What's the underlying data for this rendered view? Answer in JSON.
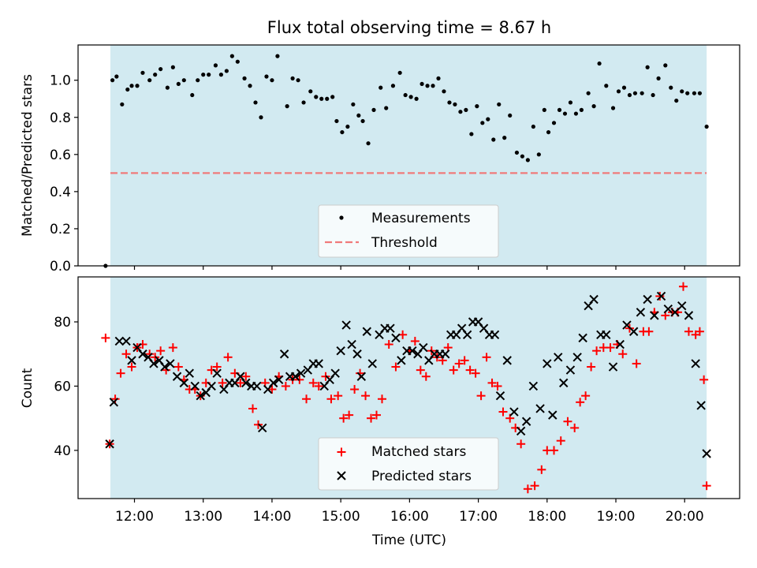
{
  "figure_title": "Flux total observing time = 8.67 h",
  "colors": {
    "shade": "#add8e6",
    "measurement": "#000000",
    "threshold": "#f07a7a",
    "matched": "#ff0000",
    "predicted": "#000000"
  },
  "chart_data": [
    {
      "type": "scatter",
      "name": "ratio",
      "title": "Flux total observing time = 8.67 h",
      "xlabel": "",
      "ylabel": "Matched/Predicted stars",
      "xlim_hours": [
        11.18,
        20.8
      ],
      "ylim": [
        0,
        1.19
      ],
      "yticks": [
        0.0,
        0.2,
        0.4,
        0.6,
        0.8,
        1.0
      ],
      "ytick_labels": [
        "0.0",
        "0.2",
        "0.4",
        "0.6",
        "0.8",
        "1.0"
      ],
      "shaded_span_hours": [
        11.65,
        20.32
      ],
      "threshold": {
        "value": 0.5,
        "x_hours": [
          11.65,
          20.32
        ]
      },
      "legend": {
        "placement": "lower center",
        "entries": [
          "Measurements",
          "Threshold"
        ]
      },
      "series": [
        {
          "name": "Measurements",
          "x_hours": [
            11.58,
            11.68,
            11.74,
            11.82,
            11.9,
            11.96,
            12.04,
            12.12,
            12.22,
            12.3,
            12.38,
            12.48,
            12.56,
            12.64,
            12.72,
            12.84,
            12.92,
            13.0,
            13.08,
            13.18,
            13.26,
            13.34,
            13.42,
            13.5,
            13.6,
            13.68,
            13.76,
            13.84,
            13.92,
            14.0,
            14.08,
            14.22,
            14.3,
            14.38,
            14.46,
            14.56,
            14.64,
            14.72,
            14.8,
            14.88,
            14.94,
            15.02,
            15.1,
            15.18,
            15.26,
            15.32,
            15.4,
            15.48,
            15.58,
            15.66,
            15.76,
            15.86,
            15.94,
            16.02,
            16.1,
            16.18,
            16.26,
            16.34,
            16.42,
            16.5,
            16.58,
            16.66,
            16.74,
            16.82,
            16.9,
            16.98,
            17.06,
            17.14,
            17.22,
            17.3,
            17.38,
            17.46,
            17.56,
            17.64,
            17.72,
            17.8,
            17.88,
            17.96,
            18.02,
            18.1,
            18.18,
            18.26,
            18.34,
            18.42,
            18.5,
            18.6,
            18.68,
            18.76,
            18.86,
            18.96,
            19.04,
            19.12,
            19.2,
            19.28,
            19.38,
            19.46,
            19.54,
            19.62,
            19.72,
            19.8,
            19.88,
            19.96,
            20.04,
            20.14,
            20.22,
            20.32
          ],
          "y": [
            0.0,
            1.0,
            1.02,
            0.87,
            0.95,
            0.97,
            0.97,
            1.04,
            1.0,
            1.03,
            1.06,
            0.96,
            1.07,
            0.98,
            1.0,
            0.92,
            1.0,
            1.03,
            1.03,
            1.08,
            1.03,
            1.05,
            1.13,
            1.1,
            1.01,
            0.97,
            0.88,
            0.8,
            1.02,
            1.0,
            1.13,
            0.86,
            1.01,
            1.0,
            0.88,
            0.94,
            0.91,
            0.9,
            0.9,
            0.91,
            0.78,
            0.72,
            0.75,
            0.87,
            0.81,
            0.78,
            0.66,
            0.84,
            0.96,
            0.85,
            0.97,
            1.04,
            0.92,
            0.91,
            0.9,
            0.98,
            0.97,
            0.97,
            1.01,
            0.94,
            0.88,
            0.87,
            0.83,
            0.84,
            0.71,
            0.86,
            0.77,
            0.79,
            0.68,
            0.87,
            0.69,
            0.81,
            0.61,
            0.59,
            0.57,
            0.75,
            0.6,
            0.84,
            0.72,
            0.77,
            0.84,
            0.82,
            0.88,
            0.82,
            0.84,
            0.93,
            0.86,
            1.09,
            0.97,
            0.85,
            0.94,
            0.96,
            0.92,
            0.93,
            0.93,
            1.07,
            0.92,
            1.01,
            1.08,
            0.96,
            0.89,
            0.94,
            0.93,
            0.93,
            0.93,
            0.75
          ]
        }
      ]
    },
    {
      "type": "scatter",
      "name": "counts",
      "xlabel": "Time (UTC)",
      "ylabel": "Count",
      "xlim_hours": [
        11.18,
        20.8
      ],
      "ylim": [
        25,
        94
      ],
      "yticks": [
        40,
        60,
        80
      ],
      "ytick_labels": [
        "40",
        "60",
        "80"
      ],
      "xticks_hours": [
        12,
        13,
        14,
        15,
        16,
        17,
        18,
        19,
        20
      ],
      "xtick_labels": [
        "12:00",
        "13:00",
        "14:00",
        "15:00",
        "16:00",
        "17:00",
        "18:00",
        "19:00",
        "20:00"
      ],
      "shaded_span_hours": [
        11.65,
        20.32
      ],
      "legend": {
        "placement": "lower center",
        "entries": [
          "Matched stars",
          "Predicted stars"
        ]
      },
      "series": [
        {
          "name": "Matched stars",
          "marker": "+",
          "x_hours": [
            11.58,
            11.64,
            11.72,
            11.8,
            11.88,
            11.96,
            12.04,
            12.12,
            12.22,
            12.3,
            12.38,
            12.46,
            12.56,
            12.64,
            12.72,
            12.8,
            12.88,
            12.96,
            13.04,
            13.12,
            13.2,
            13.28,
            13.36,
            13.46,
            13.54,
            13.62,
            13.72,
            13.8,
            13.9,
            14.0,
            14.1,
            14.2,
            14.3,
            14.4,
            14.5,
            14.6,
            14.68,
            14.78,
            14.86,
            14.96,
            15.04,
            15.12,
            15.2,
            15.28,
            15.36,
            15.44,
            15.52,
            15.6,
            15.7,
            15.8,
            15.9,
            16.0,
            16.08,
            16.16,
            16.24,
            16.32,
            16.4,
            16.48,
            16.56,
            16.64,
            16.72,
            16.8,
            16.88,
            16.96,
            17.04,
            17.12,
            17.2,
            17.28,
            17.36,
            17.46,
            17.54,
            17.62,
            17.72,
            17.82,
            17.92,
            18.0,
            18.1,
            18.2,
            18.3,
            18.4,
            18.48,
            18.56,
            18.64,
            18.72,
            18.82,
            18.92,
            19.02,
            19.1,
            19.2,
            19.3,
            19.4,
            19.48,
            19.56,
            19.64,
            19.72,
            19.82,
            19.9,
            19.98,
            20.06,
            20.16,
            20.22,
            20.28
          ],
          "y": [
            75,
            42,
            56,
            64,
            70,
            66,
            72,
            73,
            70,
            69,
            71,
            65,
            72,
            66,
            62,
            59,
            59,
            57,
            61,
            65,
            66,
            61,
            69,
            64,
            61,
            63,
            53,
            48,
            61,
            59,
            63,
            60,
            62,
            62,
            56,
            61,
            60,
            63,
            56,
            57,
            50,
            51,
            59,
            64,
            57,
            50,
            51,
            56,
            73,
            66,
            76,
            71,
            74,
            65,
            63,
            71,
            69,
            68,
            72,
            65,
            67,
            68,
            65,
            64,
            57,
            69,
            61,
            60,
            52,
            50,
            47,
            42,
            28,
            29,
            34,
            40,
            40,
            43,
            49,
            47,
            55,
            57,
            66,
            71,
            72,
            72,
            73,
            70,
            78,
            67,
            77,
            77,
            83,
            88,
            82,
            83,
            83,
            91,
            77,
            76,
            77,
            62
          ],
          "extra_point": {
            "x_hours": 20.32,
            "y": 29
          }
        },
        {
          "name": "Predicted stars",
          "marker": "x",
          "x_hours": [
            11.64,
            11.7,
            11.78,
            11.88,
            11.96,
            12.04,
            12.12,
            12.2,
            12.28,
            12.36,
            12.44,
            12.52,
            12.62,
            12.72,
            12.8,
            12.88,
            12.96,
            13.04,
            13.12,
            13.2,
            13.3,
            13.38,
            13.46,
            13.54,
            13.62,
            13.7,
            13.78,
            13.86,
            13.94,
            14.02,
            14.1,
            14.18,
            14.26,
            14.34,
            14.42,
            14.52,
            14.6,
            14.68,
            14.76,
            14.84,
            14.92,
            15.0,
            15.08,
            15.16,
            15.24,
            15.3,
            15.38,
            15.46,
            15.56,
            15.64,
            15.72,
            15.8,
            15.88,
            15.96,
            16.04,
            16.12,
            16.2,
            16.28,
            16.36,
            16.44,
            16.52,
            16.6,
            16.68,
            16.76,
            16.84,
            16.92,
            17.0,
            17.08,
            17.16,
            17.24,
            17.32,
            17.42,
            17.52,
            17.62,
            17.7,
            17.8,
            17.9,
            18.0,
            18.08,
            18.16,
            18.24,
            18.34,
            18.44,
            18.52,
            18.6,
            18.68,
            18.78,
            18.86,
            18.96,
            19.06,
            19.16,
            19.26,
            19.36,
            19.46,
            19.56,
            19.66,
            19.76,
            19.86,
            19.96,
            20.06,
            20.16,
            20.24,
            20.32
          ],
          "y": [
            42,
            55,
            74,
            74,
            68,
            72,
            70,
            69,
            67,
            68,
            66,
            67,
            63,
            61,
            64,
            60,
            57,
            58,
            60,
            64,
            59,
            61,
            61,
            63,
            61,
            60,
            60,
            47,
            59,
            61,
            62,
            70,
            63,
            63,
            64,
            65,
            67,
            67,
            60,
            62,
            64,
            71,
            79,
            73,
            70,
            63,
            77,
            67,
            76,
            78,
            78,
            75,
            68,
            71,
            71,
            70,
            72,
            68,
            70,
            70,
            70,
            76,
            76,
            78,
            76,
            80,
            80,
            78,
            76,
            76,
            57,
            68,
            52,
            46,
            49,
            60,
            53,
            67,
            51,
            69,
            61,
            65,
            69,
            75,
            85,
            87,
            76,
            76,
            66,
            73,
            79,
            77,
            83,
            87,
            82,
            88,
            84,
            83,
            85,
            82,
            67,
            54,
            39
          ]
        }
      ]
    }
  ]
}
